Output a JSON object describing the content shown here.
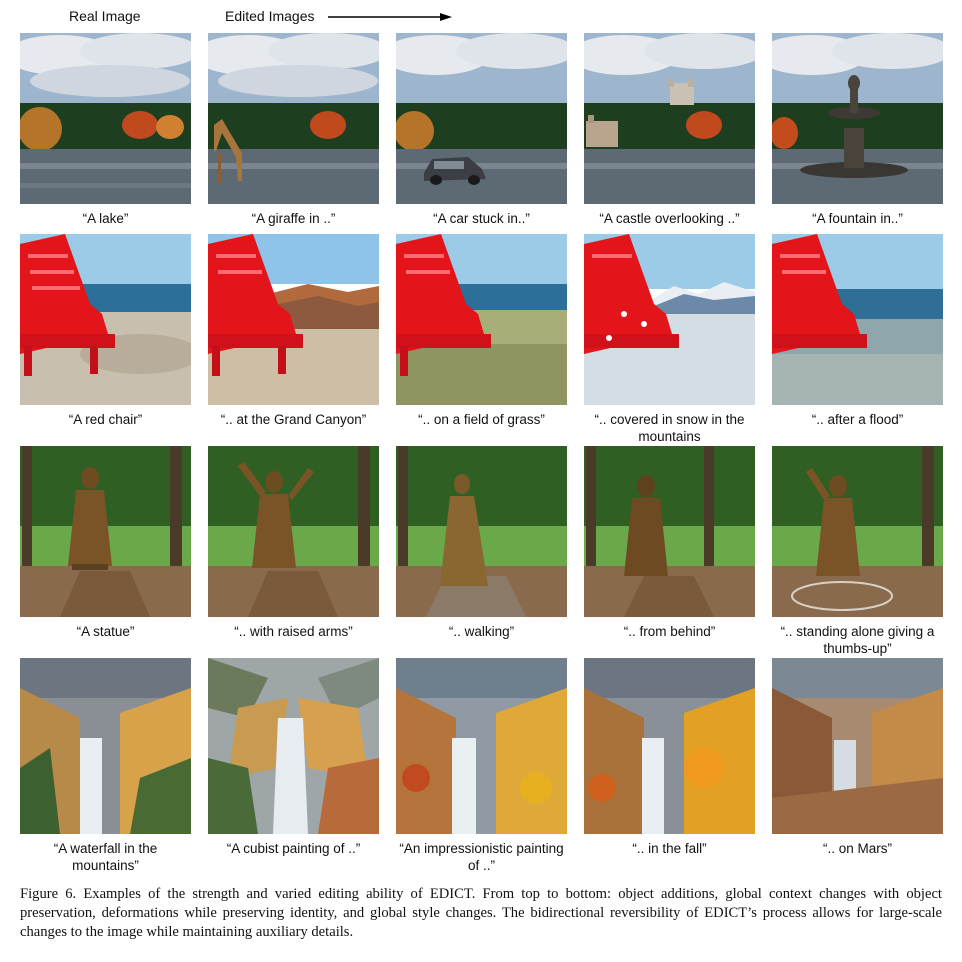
{
  "header": {
    "real_label": "Real Image",
    "edited_label": "Edited Images"
  },
  "rows": [
    {
      "cells": [
        {
          "caption": "“A lake”",
          "image": "lake-photo"
        },
        {
          "caption": "“A giraffe in ..”",
          "image": "lake-giraffe-photo"
        },
        {
          "caption": "“A car stuck in..”",
          "image": "lake-car-photo"
        },
        {
          "caption": "“A castle overlooking ..”",
          "image": "lake-castle-photo"
        },
        {
          "caption": "“A fountain in..”",
          "image": "lake-fountain-photo"
        }
      ]
    },
    {
      "cells": [
        {
          "caption": "“A red chair”",
          "image": "red-chair-beach-photo"
        },
        {
          "caption": "“.. at the Grand Canyon”",
          "image": "red-chair-canyon-photo"
        },
        {
          "caption": "“.. on a field of grass”",
          "image": "red-chair-grass-photo"
        },
        {
          "caption": "“.. covered in snow in the mountains",
          "image": "red-chair-snow-photo"
        },
        {
          "caption": "“.. after a flood”",
          "image": "red-chair-flood-photo"
        }
      ]
    },
    {
      "cells": [
        {
          "caption": "“A statue”",
          "image": "statue-photo"
        },
        {
          "caption": "“.. with raised arms”",
          "image": "statue-raised-arms-photo"
        },
        {
          "caption": "“.. walking”",
          "image": "statue-walking-photo"
        },
        {
          "caption": "“.. from behind”",
          "image": "statue-behind-photo"
        },
        {
          "caption": "“.. standing alone giving a thumbs-up”",
          "image": "statue-thumbs-up-photo"
        }
      ]
    },
    {
      "cells": [
        {
          "caption": "“A waterfall in the mountains”",
          "image": "waterfall-photo"
        },
        {
          "caption": "“A cubist painting of ..”",
          "image": "waterfall-cubist-image"
        },
        {
          "caption": "“An impressionistic painting of ..”",
          "image": "waterfall-impressionist-image"
        },
        {
          "caption": "“.. in the fall”",
          "image": "waterfall-fall-photo"
        },
        {
          "caption": "“.. on Mars”",
          "image": "waterfall-mars-photo"
        }
      ]
    }
  ],
  "figure_caption": "Figure 6. Examples of the strength and varied editing ability of EDICT. From top to bottom: object additions, global context changes with object preservation, deformations while preserving identity, and global style changes. The bidirectional reversibility of EDICT’s process allows for large-scale changes to the image while maintaining auxiliary details."
}
